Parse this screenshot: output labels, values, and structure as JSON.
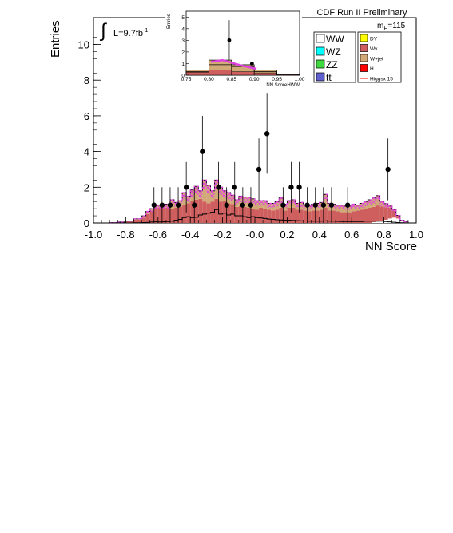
{
  "header": {
    "title": "CDF Run II Preliminary",
    "mass_label": "m",
    "mass_sub": "H",
    "mass_value": "=115",
    "lumi_label": "L=9.7fb",
    "lumi_exp": "-1"
  },
  "chart_data": {
    "type": "histogram",
    "xlabel": "NN Score",
    "ylabel": "Entries",
    "xlim": [
      -1.0,
      1.0
    ],
    "ylim": [
      0,
      11.5
    ],
    "x_ticks": [
      "-1.0",
      "-0.8",
      "-0.6",
      "-0.4",
      "-0.2",
      "-0.0",
      "0.2",
      "0.4",
      "0.6",
      "0.8",
      "1.0"
    ],
    "x_tick_values": [
      -1.0,
      -0.8,
      -0.6,
      -0.4,
      -0.2,
      0.0,
      0.2,
      0.4,
      0.6,
      0.8,
      1.0
    ],
    "y_ticks": [
      "0",
      "2",
      "4",
      "6",
      "8",
      "10"
    ],
    "y_tick_values": [
      0,
      2,
      4,
      6,
      8,
      10
    ],
    "bin_edges": [
      -1.0,
      -0.95,
      -0.9,
      -0.85,
      -0.8,
      -0.75,
      -0.7,
      -0.675,
      -0.65,
      -0.625,
      -0.6,
      -0.575,
      -0.55,
      -0.525,
      -0.5,
      -0.475,
      -0.45,
      -0.425,
      -0.4,
      -0.375,
      -0.35,
      -0.325,
      -0.3,
      -0.275,
      -0.25,
      -0.225,
      -0.2,
      -0.175,
      -0.15,
      -0.125,
      -0.1,
      -0.075,
      -0.05,
      -0.025,
      0.0,
      0.025,
      0.05,
      0.075,
      0.1,
      0.125,
      0.15,
      0.175,
      0.2,
      0.225,
      0.25,
      0.275,
      0.3,
      0.325,
      0.35,
      0.375,
      0.4,
      0.425,
      0.45,
      0.475,
      0.5,
      0.525,
      0.55,
      0.575,
      0.6,
      0.625,
      0.65,
      0.675,
      0.7,
      0.725,
      0.75,
      0.775,
      0.8,
      0.825,
      0.85,
      0.875,
      0.9,
      0.925,
      0.95,
      1.0
    ],
    "stack_order": [
      "WW",
      "WZ",
      "ZZ",
      "tt",
      "DY",
      "Wγ",
      "W+jet"
    ],
    "series": [
      {
        "name": "WW",
        "color": "#ffffff",
        "values": [
          0,
          0,
          0,
          0,
          0,
          0,
          0,
          0,
          0,
          0,
          0,
          0,
          0,
          0,
          0,
          0,
          0,
          0,
          0,
          0,
          0,
          0,
          0,
          0,
          0,
          0,
          0,
          0,
          0,
          0,
          0,
          0,
          0,
          0,
          0,
          0,
          0,
          0,
          0,
          0,
          0,
          0,
          0,
          0,
          0,
          0,
          0,
          0,
          0,
          0,
          0,
          0,
          0,
          0,
          0,
          0,
          0,
          0,
          0,
          0,
          0,
          0,
          0,
          0.05,
          0.08,
          0.12,
          0.18,
          0.25,
          0.3,
          0.25,
          0.1,
          0.04,
          0
        ]
      },
      {
        "name": "WZ",
        "color": "#00ffff",
        "values": [
          0,
          0,
          0,
          0,
          0,
          0,
          0,
          0,
          0,
          0,
          0,
          0,
          0,
          0,
          0,
          0,
          0,
          0,
          0,
          0,
          0,
          0,
          0,
          0,
          0,
          0,
          0,
          0,
          0,
          0,
          0,
          0,
          0,
          0,
          0,
          0,
          0,
          0,
          0,
          0,
          0,
          0,
          0,
          0,
          0,
          0,
          0,
          0,
          0,
          0,
          0,
          0,
          0,
          0,
          0,
          0,
          0,
          0,
          0,
          0,
          0,
          0,
          0,
          0,
          0,
          0,
          0,
          0,
          0,
          0,
          0,
          0,
          0
        ]
      },
      {
        "name": "ZZ",
        "color": "#3fd93f",
        "values": [
          0,
          0,
          0,
          0,
          0,
          0,
          0,
          0,
          0,
          0,
          0,
          0,
          0,
          0,
          0,
          0,
          0,
          0,
          0,
          0,
          0,
          0,
          0,
          0,
          0,
          0,
          0,
          0,
          0,
          0,
          0,
          0,
          0,
          0,
          0,
          0,
          0,
          0,
          0,
          0,
          0,
          0,
          0,
          0,
          0,
          0,
          0,
          0,
          0,
          0,
          0,
          0,
          0,
          0,
          0,
          0,
          0,
          0,
          0,
          0,
          0,
          0,
          0,
          0,
          0,
          0,
          0,
          0,
          0,
          0,
          0,
          0,
          0
        ]
      },
      {
        "name": "tt",
        "color": "#5f5fcf",
        "values": [
          0,
          0,
          0,
          0,
          0,
          0,
          0,
          0,
          0,
          0,
          0,
          0,
          0,
          0,
          0,
          0,
          0,
          0,
          0,
          0,
          0,
          0,
          0,
          0,
          0,
          0,
          0,
          0,
          0,
          0,
          0,
          0,
          0,
          0,
          0,
          0,
          0,
          0,
          0,
          0,
          0,
          0,
          0,
          0,
          0,
          0,
          0,
          0,
          0,
          0,
          0,
          0,
          0,
          0,
          0,
          0,
          0,
          0,
          0,
          0,
          0,
          0,
          0,
          0,
          0,
          0,
          0,
          0,
          0,
          0,
          0,
          0,
          0
        ]
      },
      {
        "name": "DY",
        "color": "#ffff00",
        "values": [
          0,
          0,
          0,
          0,
          0,
          0,
          0,
          0,
          0,
          0,
          0,
          0,
          0,
          0,
          0,
          0,
          0,
          0,
          0,
          0,
          0,
          0,
          0,
          0,
          0,
          0,
          0,
          0,
          0,
          0,
          0,
          0,
          0,
          0,
          0,
          0,
          0,
          0,
          0,
          0,
          0,
          0,
          0,
          0,
          0,
          0,
          0,
          0,
          0,
          0,
          0,
          0,
          0,
          0,
          0,
          0,
          0,
          0,
          0,
          0,
          0,
          0,
          0,
          0,
          0,
          0,
          0,
          0,
          0,
          0,
          0,
          0,
          0
        ]
      },
      {
        "name": "Wγ",
        "color": "#cf5f5f",
        "values": [
          0,
          0,
          0.02,
          0.05,
          0.08,
          0.18,
          0.3,
          0.5,
          0.7,
          0.85,
          0.85,
          0.85,
          0.85,
          0.8,
          0.85,
          0.9,
          1.0,
          1.1,
          1.25,
          1.3,
          1.35,
          1.2,
          1.1,
          1.2,
          1.35,
          1.2,
          1.25,
          1.1,
          1.05,
          0.9,
          0.95,
          0.9,
          0.85,
          0.8,
          0.75,
          0.85,
          0.8,
          0.75,
          0.7,
          0.75,
          0.85,
          0.7,
          0.85,
          0.85,
          0.75,
          0.75,
          0.7,
          0.65,
          0.7,
          0.7,
          0.75,
          0.85,
          0.7,
          0.7,
          0.65,
          0.6,
          0.6,
          0.6,
          0.65,
          0.7,
          0.75,
          0.8,
          0.85,
          0.85,
          0.9,
          0.8,
          0.7,
          0.6,
          0.4,
          0.15,
          0.05,
          0.02,
          0
        ]
      },
      {
        "name": "W+jet",
        "color": "#d2aa78",
        "values": [
          0,
          0,
          0,
          0,
          0.02,
          0.05,
          0.1,
          0.15,
          0.1,
          0.15,
          0.15,
          0.2,
          0.2,
          0.5,
          0.3,
          0.35,
          0.7,
          0.4,
          0.6,
          0.75,
          0.45,
          1.2,
          1.0,
          0.6,
          1.05,
          0.8,
          0.55,
          0.6,
          0.5,
          0.4,
          0.55,
          0.55,
          0.6,
          0.55,
          0.5,
          0.4,
          0.45,
          0.35,
          0.4,
          0.45,
          0.55,
          0.35,
          0.4,
          0.45,
          0.35,
          0.4,
          0.3,
          0.3,
          0.35,
          0.4,
          0.4,
          0.75,
          0.4,
          0.35,
          0.35,
          0.4,
          0.35,
          0.35,
          0.4,
          0.3,
          0.35,
          0.4,
          0.45,
          0.5,
          0.55,
          0.3,
          0.2,
          0.1,
          0.05,
          0.02,
          0,
          0,
          0
        ]
      }
    ],
    "higgs": {
      "name": "Higgsx 15",
      "color": "#ff0000",
      "scale": 15,
      "values": [
        0,
        0,
        0,
        0,
        0,
        0.01,
        0.02,
        0.03,
        0.05,
        0.06,
        0.05,
        0.06,
        0.08,
        0.1,
        0.15,
        0.2,
        0.3,
        0.35,
        0.3,
        0.32,
        0.45,
        0.5,
        0.55,
        0.6,
        0.75,
        0.5,
        0.55,
        0.45,
        0.5,
        0.4,
        0.4,
        0.35,
        0.3,
        0.35,
        0.3,
        0.28,
        0.25,
        0.22,
        0.2,
        0.18,
        0.17,
        0.15,
        0.15,
        0.14,
        0.13,
        0.12,
        0.11,
        0.1,
        0.1,
        0.1,
        0.1,
        0.12,
        0.1,
        0.1,
        0.09,
        0.08,
        0.08,
        0.08,
        0.08,
        0.08,
        0.08,
        0.1,
        0.1,
        0.1,
        0.1,
        0.1,
        0.08,
        0.06,
        0.04,
        0.02,
        0.01,
        0,
        0
      ]
    },
    "data_points": [
      {
        "x": -0.625,
        "y": 1,
        "err": 1
      },
      {
        "x": -0.575,
        "y": 1,
        "err": 1
      },
      {
        "x": -0.525,
        "y": 1,
        "err": 1
      },
      {
        "x": -0.475,
        "y": 1,
        "err": 1
      },
      {
        "x": -0.425,
        "y": 2,
        "err": 1.41
      },
      {
        "x": -0.375,
        "y": 1,
        "err": 1
      },
      {
        "x": -0.325,
        "y": 4,
        "err": 2
      },
      {
        "x": -0.225,
        "y": 2,
        "err": 1.41
      },
      {
        "x": -0.175,
        "y": 1,
        "err": 1
      },
      {
        "x": -0.125,
        "y": 2,
        "err": 1.41
      },
      {
        "x": -0.075,
        "y": 1,
        "err": 1
      },
      {
        "x": -0.025,
        "y": 1,
        "err": 1
      },
      {
        "x": 0.025,
        "y": 3,
        "err": 1.73
      },
      {
        "x": 0.075,
        "y": 5,
        "err": 2.24
      },
      {
        "x": 0.175,
        "y": 1,
        "err": 1
      },
      {
        "x": 0.225,
        "y": 2,
        "err": 1.41
      },
      {
        "x": 0.275,
        "y": 2,
        "err": 1.41
      },
      {
        "x": 0.325,
        "y": 1,
        "err": 1
      },
      {
        "x": 0.375,
        "y": 1,
        "err": 1
      },
      {
        "x": 0.425,
        "y": 1,
        "err": 1
      },
      {
        "x": 0.475,
        "y": 1,
        "err": 1
      },
      {
        "x": 0.575,
        "y": 1,
        "err": 1
      },
      {
        "x": 0.825,
        "y": 3,
        "err": 1.73
      }
    ],
    "legend_placement": "top-right",
    "legend": {
      "left": [
        {
          "label": "WW",
          "color": "#ffffff"
        },
        {
          "label": "WZ",
          "color": "#00ffff"
        },
        {
          "label": "ZZ",
          "color": "#3fd93f"
        },
        {
          "label": "tt",
          "color": "#5f5fcf"
        }
      ],
      "right": [
        {
          "label": "DY",
          "color": "#ffff00"
        },
        {
          "label": "Wγ",
          "color": "#cf5f5f"
        },
        {
          "label": "W+jet",
          "color": "#d2aa78"
        },
        {
          "label": "H",
          "color": "#ff0000"
        },
        {
          "label": "Higgsx 15",
          "color": "#ff0000",
          "line": true
        }
      ]
    },
    "inset": {
      "xlabel": "NN ScoreHWW",
      "ylabel": "Entries",
      "xlim": [
        0.75,
        1.0
      ],
      "ylim": [
        0,
        5.5
      ],
      "x_ticks": [
        "0.75",
        "0.80",
        "0.85",
        "0.90",
        "0.95",
        "1.00"
      ],
      "x_tick_values": [
        0.75,
        0.8,
        0.85,
        0.9,
        0.95,
        1.0
      ],
      "y_ticks": [
        "0",
        "1",
        "2",
        "3",
        "4",
        "5"
      ],
      "y_tick_values": [
        0,
        1,
        2,
        3,
        4,
        5
      ],
      "bin_edges": [
        0.75,
        0.8,
        0.85,
        0.9,
        0.95,
        1.0
      ],
      "background": [
        0.45,
        1.3,
        0.9,
        0.45,
        0.1
      ],
      "wgamma": [
        0.25,
        0.45,
        0.3,
        0.2,
        0.05
      ],
      "higgs": [
        0.3,
        0.9,
        0.75,
        0.3,
        0.05
      ],
      "data_points": [
        {
          "x": 0.845,
          "y": 3,
          "err": 1.73
        },
        {
          "x": 0.895,
          "y": 1,
          "err": 1
        }
      ]
    }
  }
}
